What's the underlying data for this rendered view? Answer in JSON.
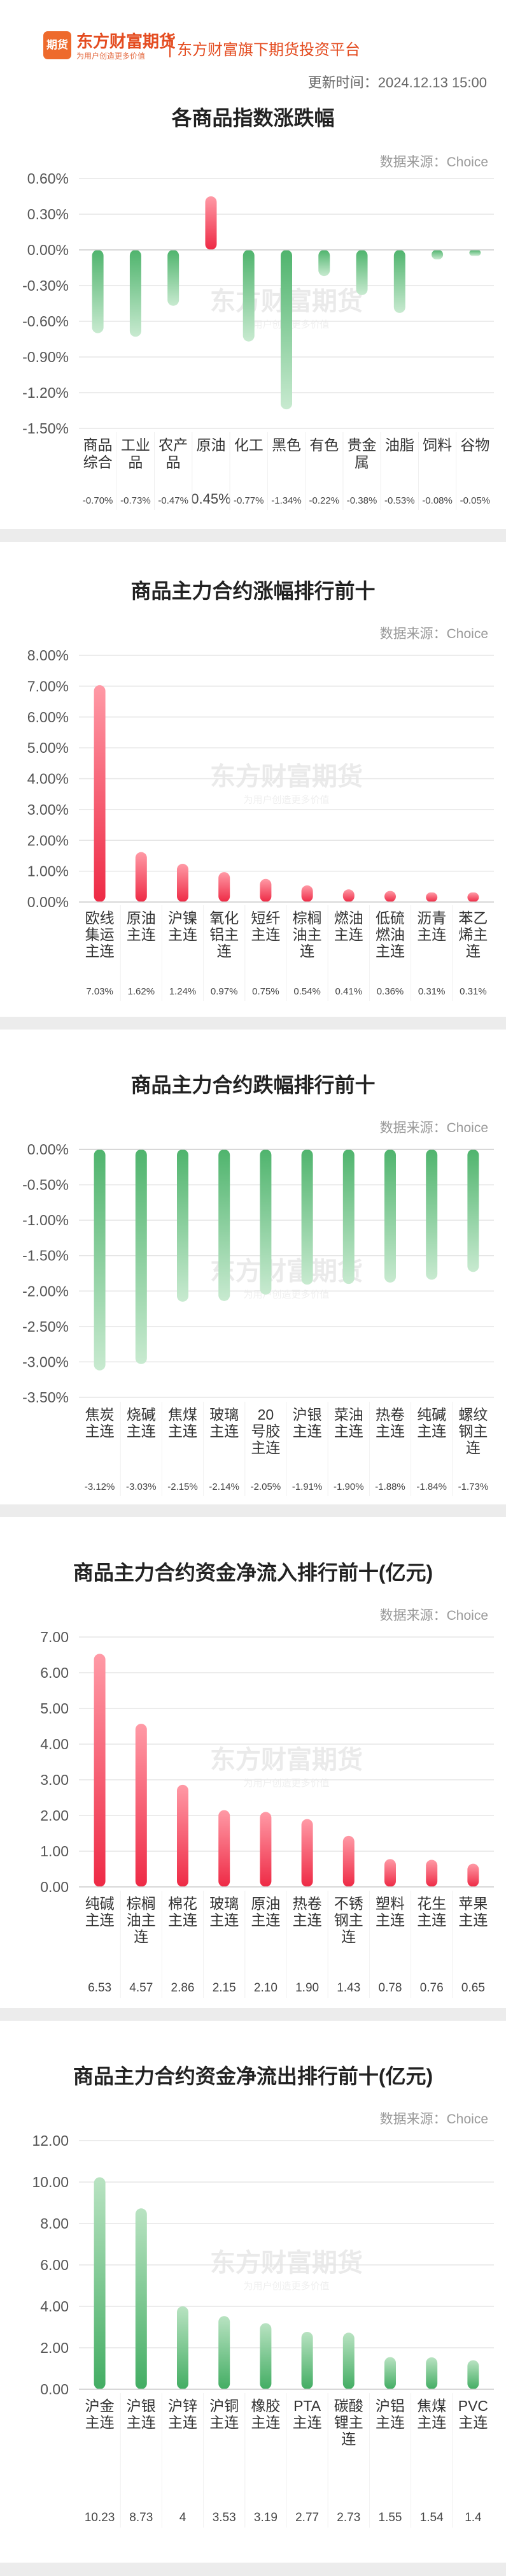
{
  "header": {
    "logo_mark": "期货",
    "logo_name": "东方财富期货",
    "logo_slogan": "为用户创造更多价值",
    "platform": "东方财富旗下期货投资平台",
    "update_time": "更新时间：2024.12.13 15:00"
  },
  "watermark": {
    "main": "东方财富期货",
    "sub": "为用户创造更多价值"
  },
  "source_text": "数据来源：Choice",
  "colors": {
    "red_top": "#ff9aa6",
    "red_bottom": "#ee2a45",
    "green_top": "#b9e3c2",
    "green_bottom": "#43ad63",
    "neg_green_top": "#4fb46d",
    "neg_green_bottom": "#c8ead0",
    "grid": "#e6e6e6",
    "axis_text": "#555555"
  },
  "chart_data": [
    {
      "id": "index",
      "type": "bar",
      "title": "各商品指数涨跌幅",
      "categories": [
        "商品综合",
        "工业品",
        "农产品",
        "原油",
        "化工",
        "黑色",
        "有色",
        "贵金属",
        "油脂",
        "饲料",
        "谷物"
      ],
      "values": [
        -0.7,
        -0.73,
        -0.47,
        0.45,
        -0.77,
        -1.34,
        -0.22,
        -0.38,
        -0.53,
        -0.08,
        -0.05
      ],
      "value_labels": [
        "-0.70%",
        "-0.73%",
        "-0.47%",
        "0.45%",
        "-0.77%",
        "-1.34%",
        "-0.22%",
        "-0.38%",
        "-0.53%",
        "-0.08%",
        "-0.05%"
      ],
      "ylim": [
        -1.5,
        0.6
      ],
      "yticks": [
        0.6,
        0.3,
        0,
        -0.3,
        -0.6,
        -0.9,
        -1.2,
        -1.5
      ],
      "ytick_labels": [
        "0.60%",
        "0.30%",
        "0.00%",
        "-0.30%",
        "-0.60%",
        "-0.90%",
        "-1.20%",
        "-1.50%"
      ],
      "grid": true
    },
    {
      "id": "gainers",
      "type": "bar",
      "title": "商品主力合约涨幅排行前十",
      "categories": [
        "欧线集运主连",
        "原油主连",
        "沪镍主连",
        "氧化铝主连",
        "短纤主连",
        "棕榈油主连",
        "燃油主连",
        "低硫燃油主连",
        "沥青主连",
        "苯乙烯主连"
      ],
      "values": [
        7.03,
        1.62,
        1.24,
        0.97,
        0.75,
        0.54,
        0.41,
        0.36,
        0.31,
        0.31
      ],
      "value_labels": [
        "7.03%",
        "1.62%",
        "1.24%",
        "0.97%",
        "0.75%",
        "0.54%",
        "0.41%",
        "0.36%",
        "0.31%",
        "0.31%"
      ],
      "ylim": [
        0,
        8
      ],
      "yticks": [
        8,
        7,
        6,
        5,
        4,
        3,
        2,
        1,
        0
      ],
      "ytick_labels": [
        "8.00%",
        "7.00%",
        "6.00%",
        "5.00%",
        "4.00%",
        "3.00%",
        "2.00%",
        "1.00%",
        "0.00%"
      ],
      "grid": true
    },
    {
      "id": "losers",
      "type": "bar",
      "title": "商品主力合约跌幅排行前十",
      "categories": [
        "焦炭主连",
        "烧碱主连",
        "焦煤主连",
        "玻璃主连",
        "20号胶主连",
        "沪银主连",
        "菜油主连",
        "热卷主连",
        "纯碱主连",
        "螺纹钢主连"
      ],
      "values": [
        -3.12,
        -3.03,
        -2.15,
        -2.14,
        -2.05,
        -1.91,
        -1.9,
        -1.88,
        -1.84,
        -1.73
      ],
      "value_labels": [
        "-3.12%",
        "-3.03%",
        "-2.15%",
        "-2.14%",
        "-2.05%",
        "-1.91%",
        "-1.90%",
        "-1.88%",
        "-1.84%",
        "-1.73%"
      ],
      "ylim": [
        -3.5,
        0
      ],
      "yticks": [
        0,
        -0.5,
        -1,
        -1.5,
        -2,
        -2.5,
        -3,
        -3.5
      ],
      "ytick_labels": [
        "0.00%",
        "-0.50%",
        "-1.00%",
        "-1.50%",
        "-2.00%",
        "-2.50%",
        "-3.00%",
        "-3.50%"
      ],
      "grid": true
    },
    {
      "id": "inflow",
      "type": "bar",
      "title": "商品主力合约资金净流入排行前十(亿元)",
      "categories": [
        "纯碱主连",
        "棕榈油主连",
        "棉花主连",
        "玻璃主连",
        "原油主连",
        "热卷主连",
        "不锈钢主连",
        "塑料主连",
        "花生主连",
        "苹果主连"
      ],
      "values": [
        6.53,
        4.57,
        2.86,
        2.15,
        2.1,
        1.9,
        1.43,
        0.78,
        0.76,
        0.65
      ],
      "value_labels": [
        "6.53",
        "4.57",
        "2.86",
        "2.15",
        "2.10",
        "1.90",
        "1.43",
        "0.78",
        "0.76",
        "0.65"
      ],
      "ylim": [
        0,
        7
      ],
      "yticks": [
        7,
        6,
        5,
        4,
        3,
        2,
        1,
        0
      ],
      "ytick_labels": [
        "7.00",
        "6.00",
        "5.00",
        "4.00",
        "3.00",
        "2.00",
        "1.00",
        "0.00"
      ],
      "grid": true
    },
    {
      "id": "outflow",
      "type": "bar",
      "title": "商品主力合约资金净流出排行前十(亿元)",
      "categories": [
        "沪金主连",
        "沪银主连",
        "沪锌主连",
        "沪铜主连",
        "橡胶主连",
        "PTA主连",
        "碳酸锂主连",
        "沪铝主连",
        "焦煤主连",
        "PVC主连"
      ],
      "values": [
        10.23,
        8.73,
        4,
        3.53,
        3.19,
        2.77,
        2.73,
        1.55,
        1.54,
        1.4
      ],
      "value_labels": [
        "10.23",
        "8.73",
        "4",
        "3.53",
        "3.19",
        "2.77",
        "2.73",
        "1.55",
        "1.54",
        "1.4"
      ],
      "ylim": [
        0,
        12
      ],
      "yticks": [
        12,
        10,
        8,
        6,
        4,
        2,
        0
      ],
      "ytick_labels": [
        "12.00",
        "10.00",
        "8.00",
        "6.00",
        "4.00",
        "2.00",
        "0.00"
      ],
      "grid": true
    }
  ]
}
